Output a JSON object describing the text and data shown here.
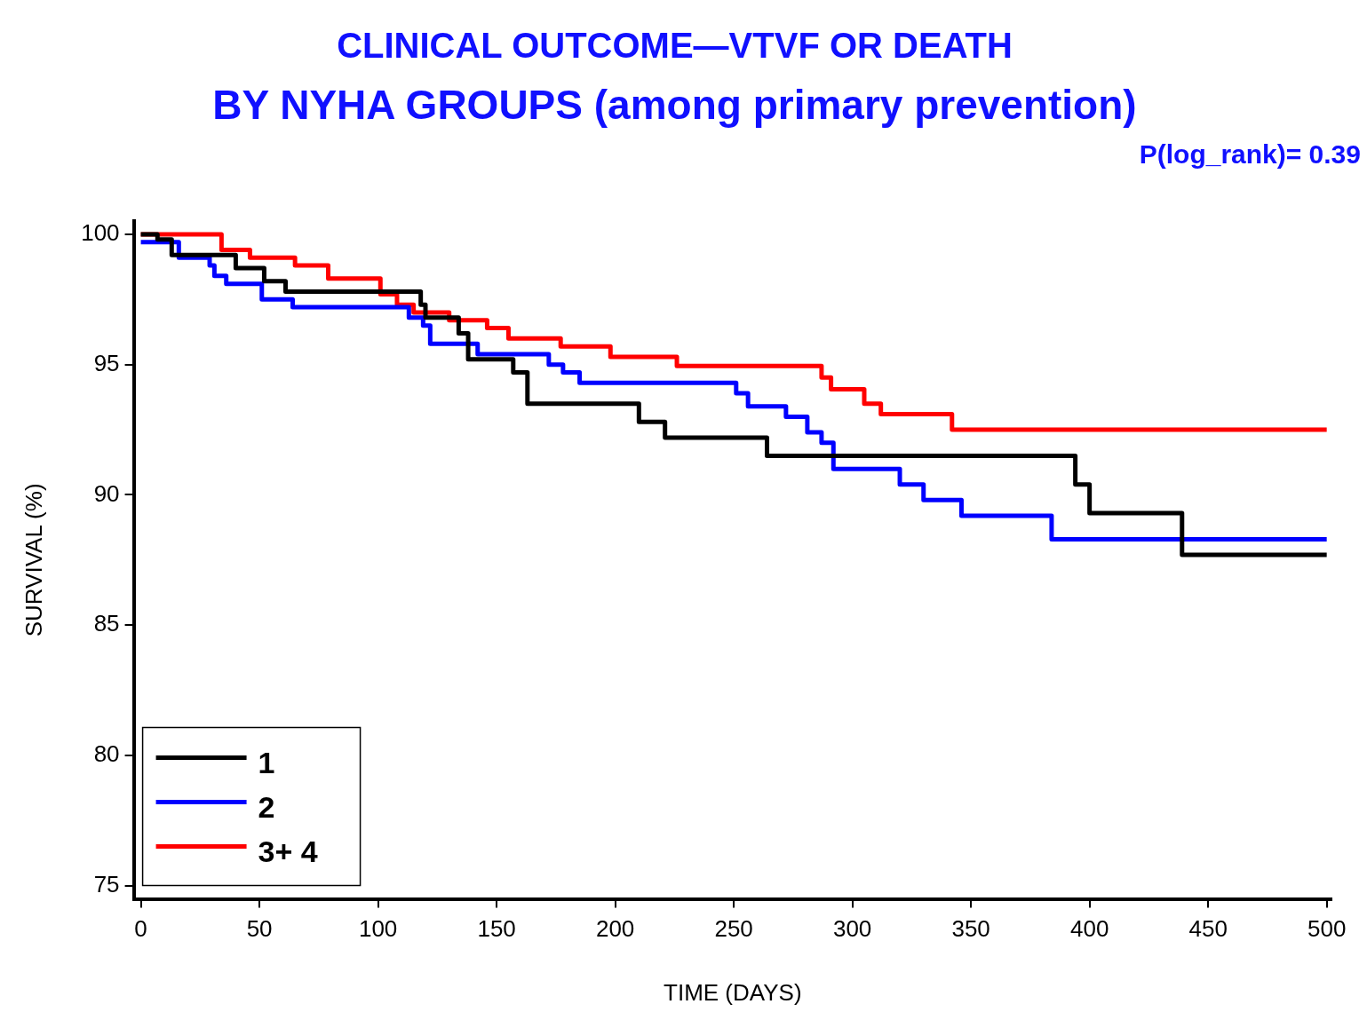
{
  "chart_data": {
    "type": "step",
    "title": "CLINICAL OUTCOME—VTVF OR DEATH",
    "subtitle": "BY NYHA GROUPS (among primary prevention)",
    "xlabel": "TIME (DAYS)",
    "ylabel": "SURVIVAL (%)",
    "annotations": [
      "P(log_rank)= 0.39"
    ],
    "xlim": [
      -3,
      502
    ],
    "xticks": [
      0,
      50,
      100,
      150,
      200,
      250,
      300,
      350,
      400,
      450,
      500
    ],
    "ylim": [
      74.5,
      100.5
    ],
    "yticks": [
      75,
      80,
      85,
      90,
      95,
      100
    ],
    "grid": false,
    "legend": "bottom left",
    "marker": "none",
    "line_style": "solid",
    "series": [
      {
        "name": "1",
        "color": "#000000",
        "x": [
          0,
          7,
          13,
          40,
          52,
          61,
          118,
          120,
          134,
          138,
          157,
          163,
          210,
          221,
          264,
          394,
          400,
          439,
          500
        ],
        "values": [
          100,
          99.8,
          99.2,
          98.7,
          98.2,
          97.8,
          97.3,
          96.8,
          96.2,
          95.2,
          94.7,
          93.5,
          92.8,
          92.2,
          91.5,
          90.4,
          89.3,
          87.7,
          87.7
        ]
      },
      {
        "name": "2",
        "color": "#0000ff",
        "x": [
          0,
          16,
          29,
          31,
          36,
          51,
          64,
          113,
          119,
          122,
          142,
          172,
          178,
          185,
          251,
          256,
          272,
          281,
          287,
          292,
          320,
          330,
          346,
          384,
          500
        ],
        "values": [
          99.7,
          99.1,
          98.8,
          98.4,
          98.1,
          97.5,
          97.2,
          96.8,
          96.5,
          95.8,
          95.4,
          95,
          94.7,
          94.3,
          93.9,
          93.4,
          93,
          92.4,
          92,
          91,
          90.4,
          89.8,
          89.2,
          88.3,
          88.3
        ]
      },
      {
        "name": "3+ 4",
        "color": "#ff0000",
        "x": [
          0,
          34,
          46,
          65,
          79,
          101,
          108,
          115,
          130,
          146,
          155,
          177,
          198,
          226,
          287,
          291,
          305,
          312,
          342,
          500
        ],
        "values": [
          100,
          99.4,
          99.1,
          98.8,
          98.3,
          97.7,
          97.3,
          97,
          96.7,
          96.4,
          96,
          95.7,
          95.3,
          94.95,
          94.5,
          94.05,
          93.5,
          93.1,
          92.5,
          92.5
        ]
      }
    ]
  }
}
